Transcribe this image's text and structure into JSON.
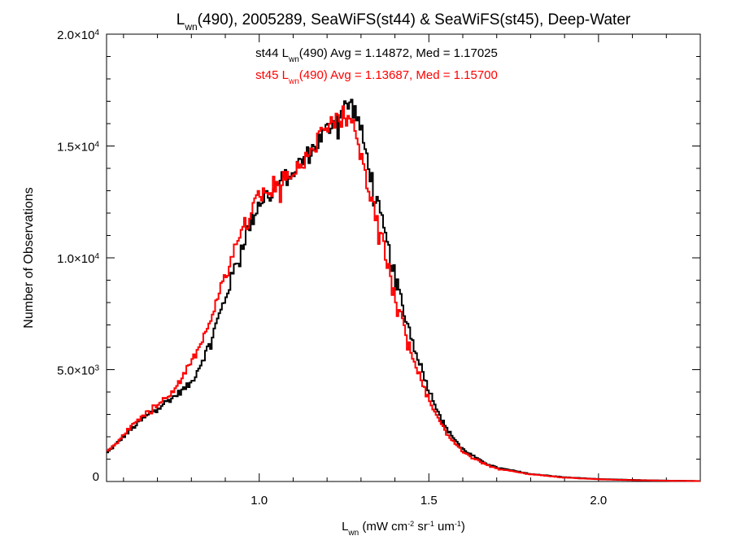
{
  "chart_data": {
    "type": "line",
    "style": "step histogram",
    "title": {
      "main": "L",
      "main_sub": "wn",
      "rest": "(490), 2005289, SeaWiFS(st44) & SeaWiFS(st45), Deep-Water"
    },
    "xlabel": {
      "main": "L",
      "main_sub": "wn",
      "units_parts": [
        {
          "text": " (mW cm",
          "sup": "-2"
        },
        {
          "text": " sr",
          "sup": "-1"
        },
        {
          "text": " um",
          "sup": "-1"
        },
        {
          "text": ")",
          "sup": ""
        }
      ]
    },
    "ylabel": "Number of Observations",
    "xlim": [
      0.55,
      2.3
    ],
    "ylim": [
      0,
      20000
    ],
    "x_ticks": [
      {
        "value": 1.0,
        "label": "1.0"
      },
      {
        "value": 1.5,
        "label": "1.5"
      },
      {
        "value": 2.0,
        "label": "2.0"
      }
    ],
    "y_ticks": [
      {
        "value": 0,
        "mant": "0",
        "exp": ""
      },
      {
        "value": 5000,
        "mant": "5.0×10",
        "exp": "3"
      },
      {
        "value": 10000,
        "mant": "1.0×10",
        "exp": "4"
      },
      {
        "value": 15000,
        "mant": "1.5×10",
        "exp": "4"
      },
      {
        "value": 20000,
        "mant": "2.0×10",
        "exp": "4"
      }
    ],
    "grid": false,
    "bin_width": 0.005,
    "annotations": [
      {
        "prefix": "st44 L",
        "sub": "wn",
        "rest": "(490) Avg = 1.14872, Med = 1.17025",
        "color": "#000000"
      },
      {
        "prefix": "st45 L",
        "sub": "wn",
        "rest": "(490) Avg = 1.13687, Med = 1.15700",
        "color": "#ff0000"
      }
    ],
    "series": [
      {
        "name": "st44",
        "color": "#000000",
        "x": [
          0.55,
          0.6,
          0.65,
          0.7,
          0.75,
          0.8,
          0.85,
          0.9,
          0.95,
          1.0,
          1.05,
          1.1,
          1.15,
          1.2,
          1.22,
          1.25,
          1.27,
          1.29,
          1.31,
          1.35,
          1.4,
          1.45,
          1.5,
          1.55,
          1.6,
          1.65,
          1.7,
          1.8,
          1.9,
          2.0,
          2.1,
          2.2,
          2.3
        ],
        "y": [
          1250,
          2000,
          2700,
          3300,
          3800,
          4400,
          6000,
          8200,
          10600,
          12500,
          13200,
          13900,
          14700,
          15700,
          16200,
          16700,
          16900,
          16300,
          15000,
          12300,
          9200,
          6400,
          4100,
          2400,
          1450,
          950,
          620,
          340,
          190,
          110,
          70,
          40,
          20
        ]
      },
      {
        "name": "st45",
        "color": "#ff0000",
        "x": [
          0.55,
          0.6,
          0.65,
          0.7,
          0.75,
          0.8,
          0.85,
          0.9,
          0.95,
          1.0,
          1.05,
          1.1,
          1.15,
          1.2,
          1.22,
          1.25,
          1.27,
          1.29,
          1.31,
          1.35,
          1.4,
          1.45,
          1.5,
          1.55,
          1.6,
          1.65,
          1.7,
          1.8,
          1.9,
          2.0,
          2.1,
          2.2,
          2.3
        ],
        "y": [
          1300,
          2100,
          2850,
          3450,
          4100,
          5300,
          7000,
          9200,
          11300,
          12800,
          13300,
          13800,
          14800,
          15700,
          16000,
          16400,
          16200,
          15300,
          14000,
          11500,
          8400,
          5700,
          3700,
          2200,
          1350,
          900,
          580,
          320,
          180,
          100,
          60,
          35,
          18
        ]
      }
    ]
  }
}
